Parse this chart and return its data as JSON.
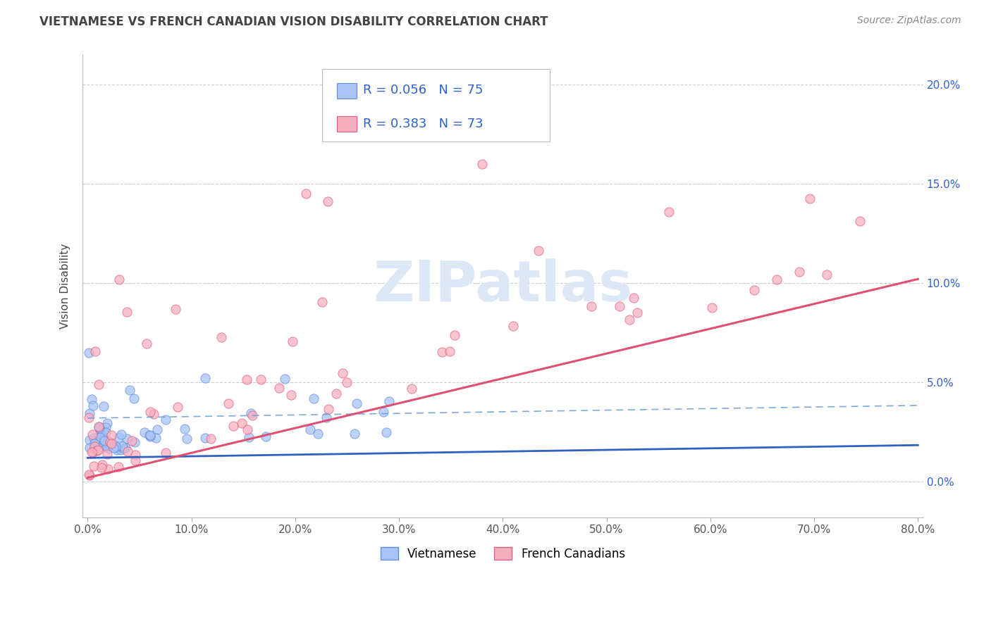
{
  "title": "VIETNAMESE VS FRENCH CANADIAN VISION DISABILITY CORRELATION CHART",
  "source": "Source: ZipAtlas.com",
  "ylabel": "Vision Disability",
  "xlim": [
    -0.005,
    0.805
  ],
  "ylim": [
    -0.018,
    0.215
  ],
  "xticks": [
    0.0,
    0.1,
    0.2,
    0.3,
    0.4,
    0.5,
    0.6,
    0.7,
    0.8
  ],
  "xtick_labels": [
    "0.0%",
    "10.0%",
    "20.0%",
    "30.0%",
    "40.0%",
    "50.0%",
    "60.0%",
    "70.0%",
    "80.0%"
  ],
  "yticks_right": [
    0.0,
    0.05,
    0.1,
    0.15,
    0.2
  ],
  "ytick_labels_right": [
    "0.0%",
    "5.0%",
    "10.0%",
    "15.0%",
    "20.0%"
  ],
  "viet_color": "#a8c4f5",
  "viet_edge_color": "#6090e0",
  "fc_color": "#f5b0c0",
  "fc_edge_color": "#e06080",
  "viet_R": 0.056,
  "viet_N": 75,
  "fc_R": 0.383,
  "fc_N": 73,
  "legend_label_viet": "Vietnamese",
  "legend_label_fc": "French Canadians",
  "r_color": "#3060d0",
  "background_color": "#ffffff",
  "grid_color": "#c8c8c8",
  "title_color": "#444444",
  "watermark_text": "ZIPatlas",
  "watermark_color": "#dce8f5",
  "viet_line_color": "#3060c0",
  "viet_dash_color": "#70a0d8",
  "fc_line_color": "#e05070",
  "fc_dash_color": "#e08090"
}
